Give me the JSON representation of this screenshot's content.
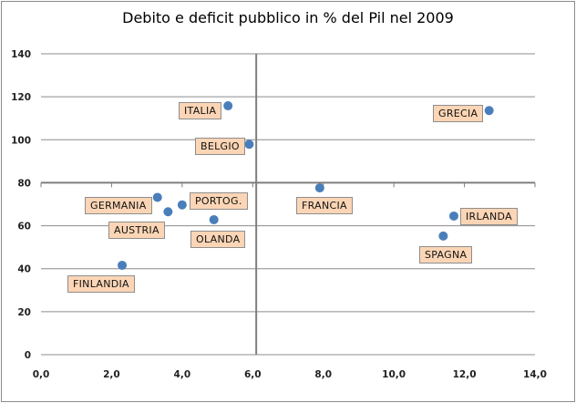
{
  "chart_data": {
    "type": "scatter",
    "title": "Debito e deficit pubblico in % del Pil nel 2009",
    "xlabel": "",
    "ylabel": "",
    "xlim": [
      0,
      14
    ],
    "ylim": [
      0,
      140
    ],
    "x_ticks": [
      "0,0",
      "2,0",
      "4,0",
      "6,0",
      "8,0",
      "10,0",
      "12,0",
      "14,0"
    ],
    "y_ticks": [
      "0",
      "20",
      "40",
      "60",
      "80",
      "100",
      "120",
      "140"
    ],
    "grid": "horizontal",
    "reference_lines": {
      "x": 6.1,
      "y": 80
    },
    "point_color": "#4a7ebb",
    "label_color": "#fbd5b5",
    "points": [
      {
        "label": "ITALIA",
        "x": 5.3,
        "y": 115.8
      },
      {
        "label": "BELGIO",
        "x": 5.9,
        "y": 97.9
      },
      {
        "label": "GRECIA",
        "x": 12.7,
        "y": 113.6
      },
      {
        "label": "FRANCIA",
        "x": 7.9,
        "y": 77.6
      },
      {
        "label": "GERMANIA",
        "x": 3.3,
        "y": 73.2
      },
      {
        "label": "PORTOG.",
        "x": 4.0,
        "y": 69.7
      },
      {
        "label": "AUSTRIA",
        "x": 3.6,
        "y": 66.5
      },
      {
        "label": "OLANDA",
        "x": 4.9,
        "y": 62.8
      },
      {
        "label": "IRLANDA",
        "x": 11.7,
        "y": 64.5
      },
      {
        "label": "SPAGNA",
        "x": 11.4,
        "y": 55.2
      },
      {
        "label": "FINLANDIA",
        "x": 2.3,
        "y": 41.6
      }
    ]
  }
}
